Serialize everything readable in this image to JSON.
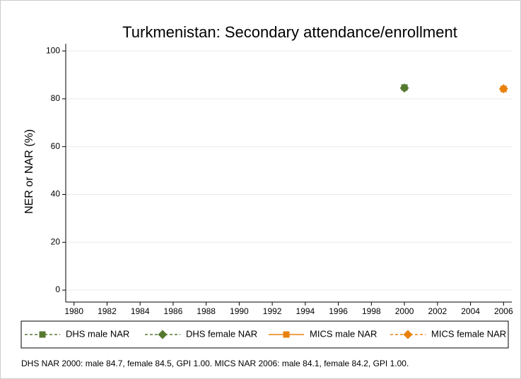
{
  "chart_data": {
    "type": "scatter",
    "title": "Turkmenistan: Secondary attendance/enrollment",
    "ylabel": "NER or NAR (%)",
    "note": "DHS NAR 2000: male 84.7, female 84.5, GPI 1.00. MICS NAR 2006: male 84.1, female 84.2, GPI 1.00.",
    "x": [
      2000,
      2006
    ],
    "series": [
      {
        "name": "DHS male NAR",
        "color": "#55792e",
        "marker": "square",
        "line_style": "dashed",
        "values": [
          84.7,
          null
        ]
      },
      {
        "name": "DHS female NAR",
        "color": "#55792e",
        "marker": "diamond",
        "line_style": "dashed",
        "values": [
          84.5,
          null
        ]
      },
      {
        "name": "MICS male NAR",
        "color": "#e8820c",
        "marker": "square",
        "line_style": "solid",
        "values": [
          null,
          84.1
        ]
      },
      {
        "name": "MICS female NAR",
        "color": "#e8820c",
        "marker": "diamond",
        "line_style": "dashed",
        "values": [
          null,
          84.2
        ]
      }
    ],
    "xlim": [
      1979.5,
      2006.5
    ],
    "xticks": [
      1980,
      1982,
      1984,
      1986,
      1988,
      1990,
      1992,
      1994,
      1996,
      1998,
      2000,
      2002,
      2004,
      2006
    ],
    "ylim": [
      -5,
      103
    ],
    "yticks": [
      0,
      20,
      40,
      60,
      80,
      100
    ],
    "grid": true
  }
}
